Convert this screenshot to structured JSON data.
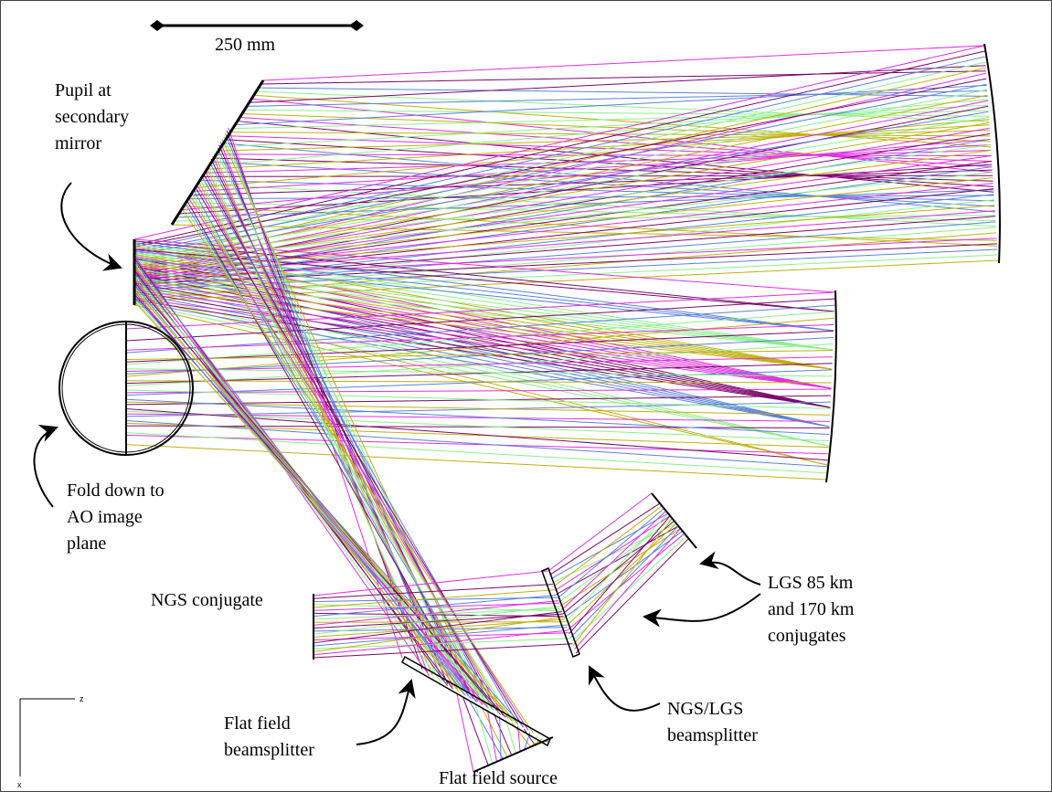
{
  "scale_bar": {
    "label": "250 mm"
  },
  "labels": {
    "pupil": [
      "Pupil at",
      "secondary",
      "mirror"
    ],
    "fold": [
      "Fold down to",
      "AO image",
      "plane"
    ],
    "ngs_conjugate": [
      "NGS conjugate"
    ],
    "lgs_conjugates": [
      "LGS 85 km",
      "and 170 km",
      "conjugates"
    ],
    "ngs_lgs_beamsplitter": [
      "NGS/LGS",
      "beamsplitter"
    ],
    "flat_field_beamsplitter": [
      "Flat field",
      "beamsplitter"
    ],
    "flat_field_source": [
      "Flat field source"
    ]
  },
  "axes": {
    "horizontal": "z",
    "vertical": "x"
  }
}
